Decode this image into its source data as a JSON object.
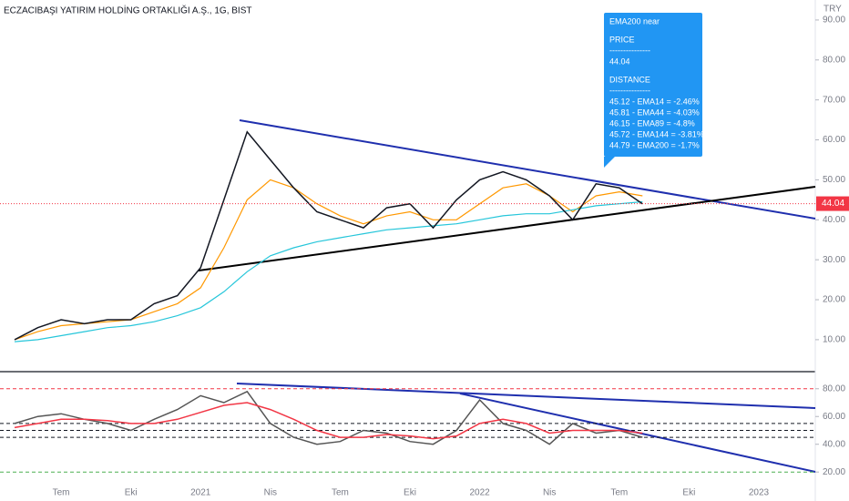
{
  "chart_data": [
    {
      "type": "line",
      "title": "ECZACIBAŞI YATIRIM HOLDİNG ORTAKLIĞI A.Ş., 1G, BIST",
      "currency_label": "TRY",
      "ylim": [
        2,
        95
      ],
      "yticks": [
        {
          "value": 10,
          "label": "10.00"
        },
        {
          "value": 20,
          "label": "20.00"
        },
        {
          "value": 30,
          "label": "30.00"
        },
        {
          "value": 40,
          "label": "40.00"
        },
        {
          "value": 50,
          "label": "50.00"
        },
        {
          "value": 60,
          "label": "60.00"
        },
        {
          "value": 70,
          "label": "70.00"
        },
        {
          "value": 80,
          "label": "80.00"
        },
        {
          "value": 90,
          "label": "90.00"
        }
      ],
      "last_price": 44.04,
      "last_price_color": "#f23645",
      "series": [
        {
          "color": "#ff9800",
          "values": [
            10,
            12,
            13.5,
            14,
            14.5,
            15,
            17,
            19,
            23,
            33,
            45,
            50,
            48,
            44,
            41,
            39,
            41,
            42,
            40,
            40,
            44,
            48,
            49,
            46,
            42,
            46,
            47,
            46,
            null,
            null,
            null,
            null,
            null,
            null
          ]
        },
        {
          "color": "#26c6da",
          "values": [
            9.5,
            10,
            11,
            12,
            13,
            13.5,
            14.5,
            16,
            18,
            22,
            27,
            31,
            33,
            34.5,
            35.5,
            36.5,
            37.5,
            38,
            38.5,
            39,
            40,
            41,
            41.5,
            41.5,
            42.5,
            43.5,
            44,
            44.5,
            null,
            null,
            null,
            null,
            null,
            null
          ]
        },
        {
          "color": "#131722",
          "values": [
            10,
            13,
            15,
            14,
            15,
            15,
            19,
            21,
            28,
            45,
            62,
            55,
            48,
            42,
            40,
            38,
            43,
            44,
            38,
            45,
            50,
            52,
            50,
            46,
            40,
            49,
            48,
            44,
            null,
            null,
            null,
            null,
            null,
            null
          ]
        }
      ],
      "tooltip": [
        "EMA200 near",
        "PRICE",
        "---------------",
        "44.04",
        "DISTANCE",
        "---------------",
        "45.12 - EMA14 = -2.46%",
        "45.81 - EMA44 = -4.03%",
        "46.15 - EMA89 = -4.8%",
        "45.72 - EMA144 = -3.81%",
        "44.79 - EMA200 = -1.7%"
      ]
    },
    {
      "type": "line",
      "ylim": [
        7,
        91
      ],
      "yticks": [
        {
          "value": 20,
          "label": "20.00"
        },
        {
          "value": 40,
          "label": "40.00"
        },
        {
          "value": 60,
          "label": "60.00"
        },
        {
          "value": 80,
          "label": "80.00"
        }
      ],
      "categories": [
        null,
        null,
        "Tem",
        null,
        null,
        "Eki",
        null,
        null,
        "2021",
        null,
        null,
        "Nis",
        null,
        null,
        "Tem",
        null,
        null,
        "Eki",
        null,
        null,
        "2022",
        null,
        null,
        "Nis",
        null,
        null,
        "Tem",
        null,
        null,
        "Eki",
        null,
        null,
        "2023",
        null
      ],
      "levels": [
        {
          "value": 80,
          "color": "#f23645"
        },
        {
          "value": 55,
          "color": "#131722"
        },
        {
          "value": 50,
          "color": "#131722"
        },
        {
          "value": 45,
          "color": "#131722"
        },
        {
          "value": 20,
          "color": "#4caf50"
        }
      ],
      "series": [
        {
          "color": "#555555",
          "values": [
            55,
            60,
            62,
            58,
            55,
            50,
            58,
            65,
            75,
            70,
            78,
            55,
            45,
            40,
            42,
            50,
            48,
            42,
            40,
            50,
            72,
            55,
            50,
            40,
            55,
            48,
            50,
            45,
            null,
            null,
            null,
            null,
            null,
            null
          ]
        },
        {
          "color": "#f23645",
          "values": [
            52,
            55,
            58,
            58,
            57,
            55,
            55,
            58,
            63,
            68,
            70,
            65,
            58,
            50,
            45,
            45,
            47,
            46,
            44,
            46,
            55,
            58,
            55,
            48,
            50,
            50,
            50,
            48,
            null,
            null,
            null,
            null,
            null,
            null
          ]
        }
      ]
    }
  ]
}
